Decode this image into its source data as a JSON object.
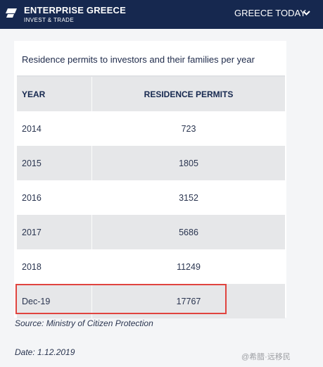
{
  "header": {
    "brand_name": "ENTERPRISE GREECE",
    "brand_sub": "INVEST & TRADE",
    "nav_label": "GREECE TODAY"
  },
  "table": {
    "title": "Residence permits to investors and their families per year",
    "columns": [
      "YEAR",
      "RESIDENCE PERMITS"
    ],
    "rows": [
      {
        "year": "2014",
        "permits": "723"
      },
      {
        "year": "2015",
        "permits": "1805"
      },
      {
        "year": "2016",
        "permits": "3152"
      },
      {
        "year": "2017",
        "permits": "5686"
      },
      {
        "year": "2018",
        "permits": "11249"
      },
      {
        "year": "Dec-19",
        "permits": "17767"
      }
    ]
  },
  "source": "Source: Ministry of Citizen Protection",
  "date": "Date: 1.12.2019",
  "watermark": "@希腊·远移民",
  "colors": {
    "navy": "#16284f",
    "row_grey": "#e6e7e9",
    "highlight_red": "#e0443f"
  }
}
